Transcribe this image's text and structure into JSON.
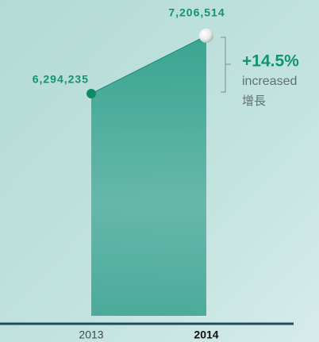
{
  "chart_data": {
    "type": "area",
    "categories": [
      "2013",
      "2014"
    ],
    "values": [
      6294235,
      7206514
    ],
    "value_labels": [
      "6,294,235",
      "7,206,514"
    ],
    "color": "#2c9e88",
    "annotation": {
      "change": "+14.5%",
      "label": "increased",
      "label_zh": "增長"
    }
  }
}
